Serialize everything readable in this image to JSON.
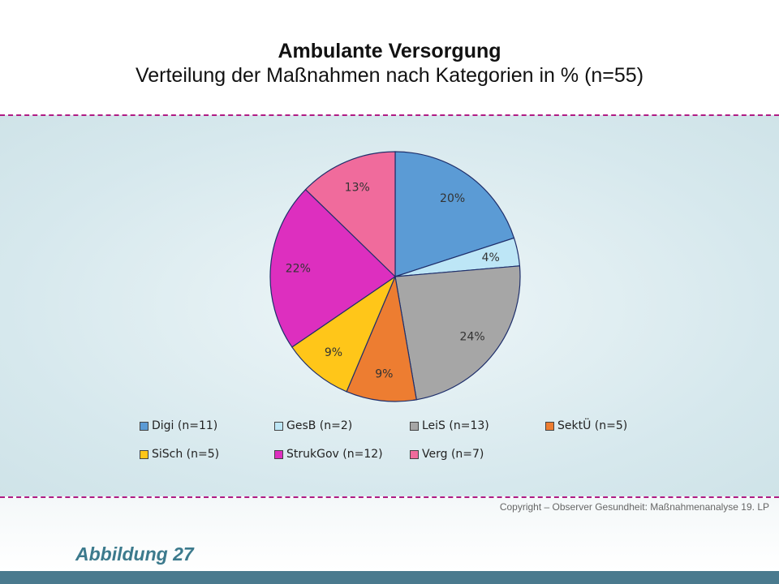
{
  "title": "Ambulante Versorgung",
  "subtitle": "Verteilung der Maßnahmen nach Kategorien in % (n=55)",
  "copyright": "Copyright – Observer Gesundheit: Maßnahmenanalyse 19. LP",
  "figure_label": "Abbildung 27",
  "chart_data": {
    "type": "pie",
    "title": "Ambulante Versorgung",
    "subtitle": "Verteilung der Maßnahmen nach Kategorien in % (n=55)",
    "legend_position": "bottom",
    "slices": [
      {
        "legend": "Digi (n=11)",
        "count": 11,
        "percent_label": "20%",
        "color": "#5b9bd5"
      },
      {
        "legend": "GesB (n=2)",
        "count": 2,
        "percent_label": "4%",
        "color": "#bde6f6"
      },
      {
        "legend": "LeiS (n=13)",
        "count": 13,
        "percent_label": "24%",
        "color": "#a6a6a6"
      },
      {
        "legend": "SektÜ (n=5)",
        "count": 5,
        "percent_label": "9%",
        "color": "#ed7d31"
      },
      {
        "legend": "SiSch (n=5)",
        "count": 5,
        "percent_label": "9%",
        "color": "#ffc619"
      },
      {
        "legend": "StrukGov (n=12)",
        "count": 12,
        "percent_label": "22%",
        "color": "#dd2fbf"
      },
      {
        "legend": "Verg (n=7)",
        "count": 7,
        "percent_label": "13%",
        "color": "#f06b9c"
      }
    ]
  }
}
